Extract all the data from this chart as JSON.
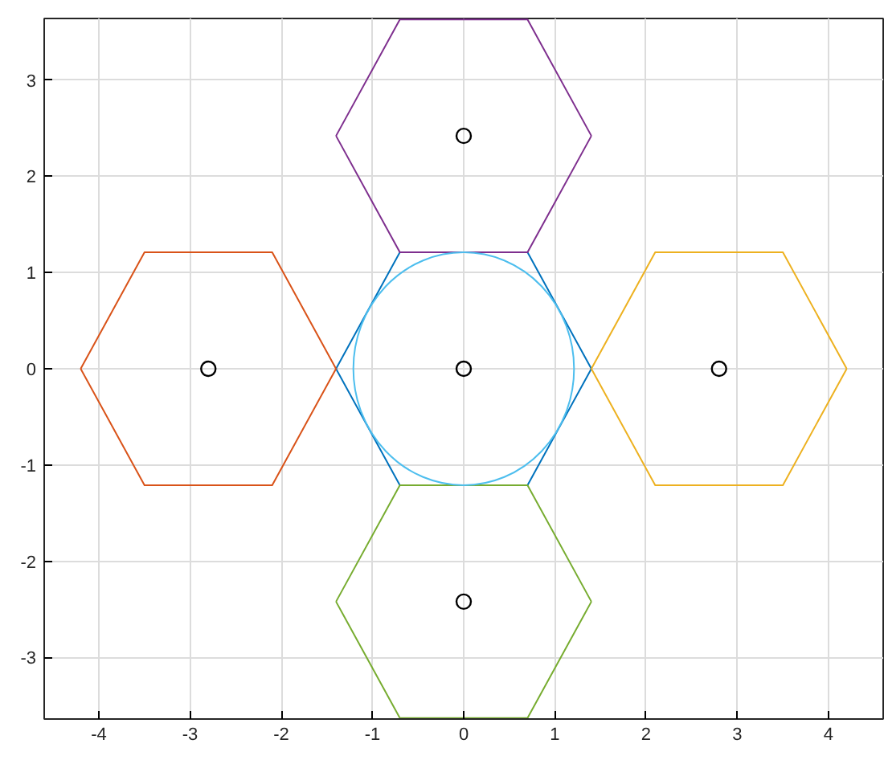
{
  "chart_data": {
    "type": "line",
    "xlim": [
      -4.6,
      4.6
    ],
    "ylim": [
      -3.64,
      3.64
    ],
    "xticks": [
      -4,
      -3,
      -2,
      -1,
      0,
      1,
      2,
      3,
      4
    ],
    "yticks": [
      -3,
      -2,
      -1,
      0,
      1,
      2,
      3
    ],
    "grid": true,
    "marker": "none",
    "series": [
      {
        "color": "#0072bd",
        "x": [
          -1.4,
          -0.7,
          0.7,
          1.4
        ],
        "values": [
          0,
          1.21,
          1.21,
          0
        ]
      },
      {
        "color": "#0072bd",
        "x": [
          -1.4,
          -0.7,
          0.7,
          1.4
        ],
        "values": [
          0,
          -1.21,
          -1.21,
          0
        ]
      },
      {
        "color": "#d95319",
        "x": [
          -4.2,
          -3.5,
          -2.1,
          -1.4
        ],
        "values": [
          0,
          1.21,
          1.21,
          0
        ]
      },
      {
        "color": "#d95319",
        "x": [
          -4.2,
          -3.5,
          -2.1,
          -1.4
        ],
        "values": [
          0,
          -1.21,
          -1.21,
          0
        ]
      },
      {
        "color": "#edb120",
        "x": [
          1.4,
          2.1,
          3.5,
          4.2
        ],
        "values": [
          0,
          1.21,
          1.21,
          0
        ]
      },
      {
        "color": "#edb120",
        "x": [
          1.4,
          2.1,
          3.5,
          4.2
        ],
        "values": [
          0,
          -1.21,
          -1.21,
          0
        ]
      },
      {
        "color": "#7e2f8e",
        "x": [
          -1.4,
          -0.7,
          0.7,
          1.4
        ],
        "values": [
          2.42,
          3.63,
          3.63,
          2.42
        ]
      },
      {
        "color": "#7e2f8e",
        "x": [
          -1.4,
          -0.7,
          0.7,
          1.4
        ],
        "values": [
          2.42,
          1.21,
          1.21,
          2.42
        ]
      },
      {
        "color": "#77ac30",
        "x": [
          -1.4,
          -0.7,
          0.7,
          1.4
        ],
        "values": [
          -2.42,
          -1.21,
          -1.21,
          -2.42
        ]
      },
      {
        "color": "#77ac30",
        "x": [
          -1.4,
          -0.7,
          0.7,
          1.4
        ],
        "values": [
          -2.42,
          -3.63,
          -3.63,
          -2.42
        ]
      },
      {
        "type": "scatter",
        "marker": "circle",
        "color": "#000000",
        "x": [
          -2.8,
          0,
          2.8,
          0,
          0
        ],
        "values": [
          0,
          0,
          0,
          2.42,
          -2.42
        ]
      }
    ]
  }
}
